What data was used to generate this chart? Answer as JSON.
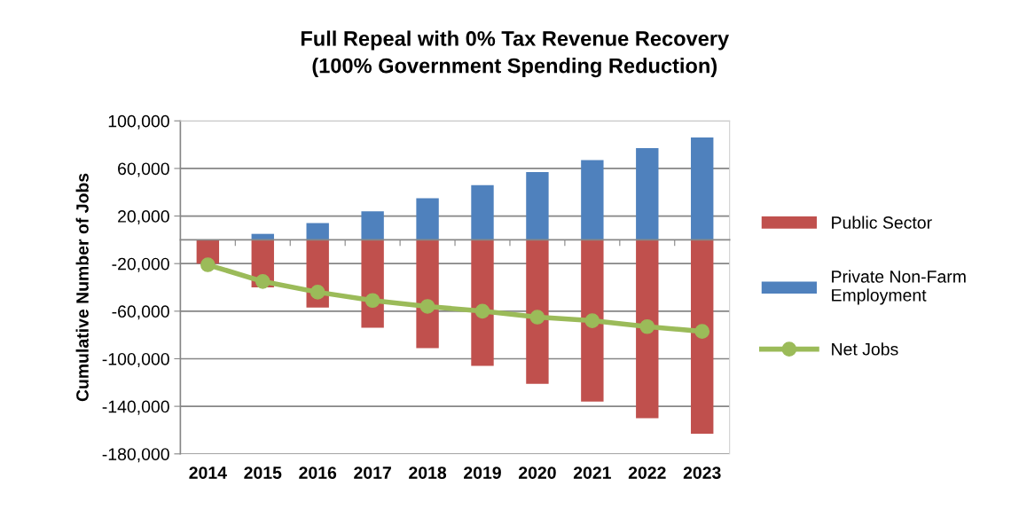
{
  "chart_data": {
    "type": "bar",
    "title": "Full Repeal with 0% Tax Revenue Recovery\n(100% Government Spending Reduction)",
    "ylabel": "Cumulative Number of Jobs",
    "categories": [
      "2014",
      "2015",
      "2016",
      "2017",
      "2018",
      "2019",
      "2020",
      "2021",
      "2022",
      "2023"
    ],
    "stacked": true,
    "series": [
      {
        "name": "Public Sector",
        "color": "#c0504d",
        "values": [
          -20000,
          -40000,
          -57000,
          -74000,
          -91000,
          -106000,
          -121000,
          -136000,
          -150000,
          -163000
        ]
      },
      {
        "name": "Private Non-Farm\nEmployment",
        "color": "#4f81bd",
        "values": [
          0,
          5000,
          14000,
          24000,
          35000,
          46000,
          57000,
          67000,
          77000,
          86000
        ]
      },
      {
        "name": "Net Jobs",
        "type": "line",
        "color": "#9bbb59",
        "marker": "circle",
        "values": [
          -21000,
          -35000,
          -44000,
          -51000,
          -56000,
          -60000,
          -65000,
          -68000,
          -73000,
          -77000
        ]
      }
    ],
    "ylim": [
      -180000,
      100000
    ],
    "yticks": [
      {
        "value": -180000,
        "label": "-180,000"
      },
      {
        "value": -140000,
        "label": "-140,000"
      },
      {
        "value": -100000,
        "label": "-100,000"
      },
      {
        "value": -60000,
        "label": "-60,000"
      },
      {
        "value": -20000,
        "label": "-20,000"
      },
      {
        "value": 20000,
        "label": "20,000"
      },
      {
        "value": 60000,
        "label": "60,000"
      },
      {
        "value": 100000,
        "label": "100,000"
      }
    ],
    "grid": "y",
    "legend": "right"
  }
}
